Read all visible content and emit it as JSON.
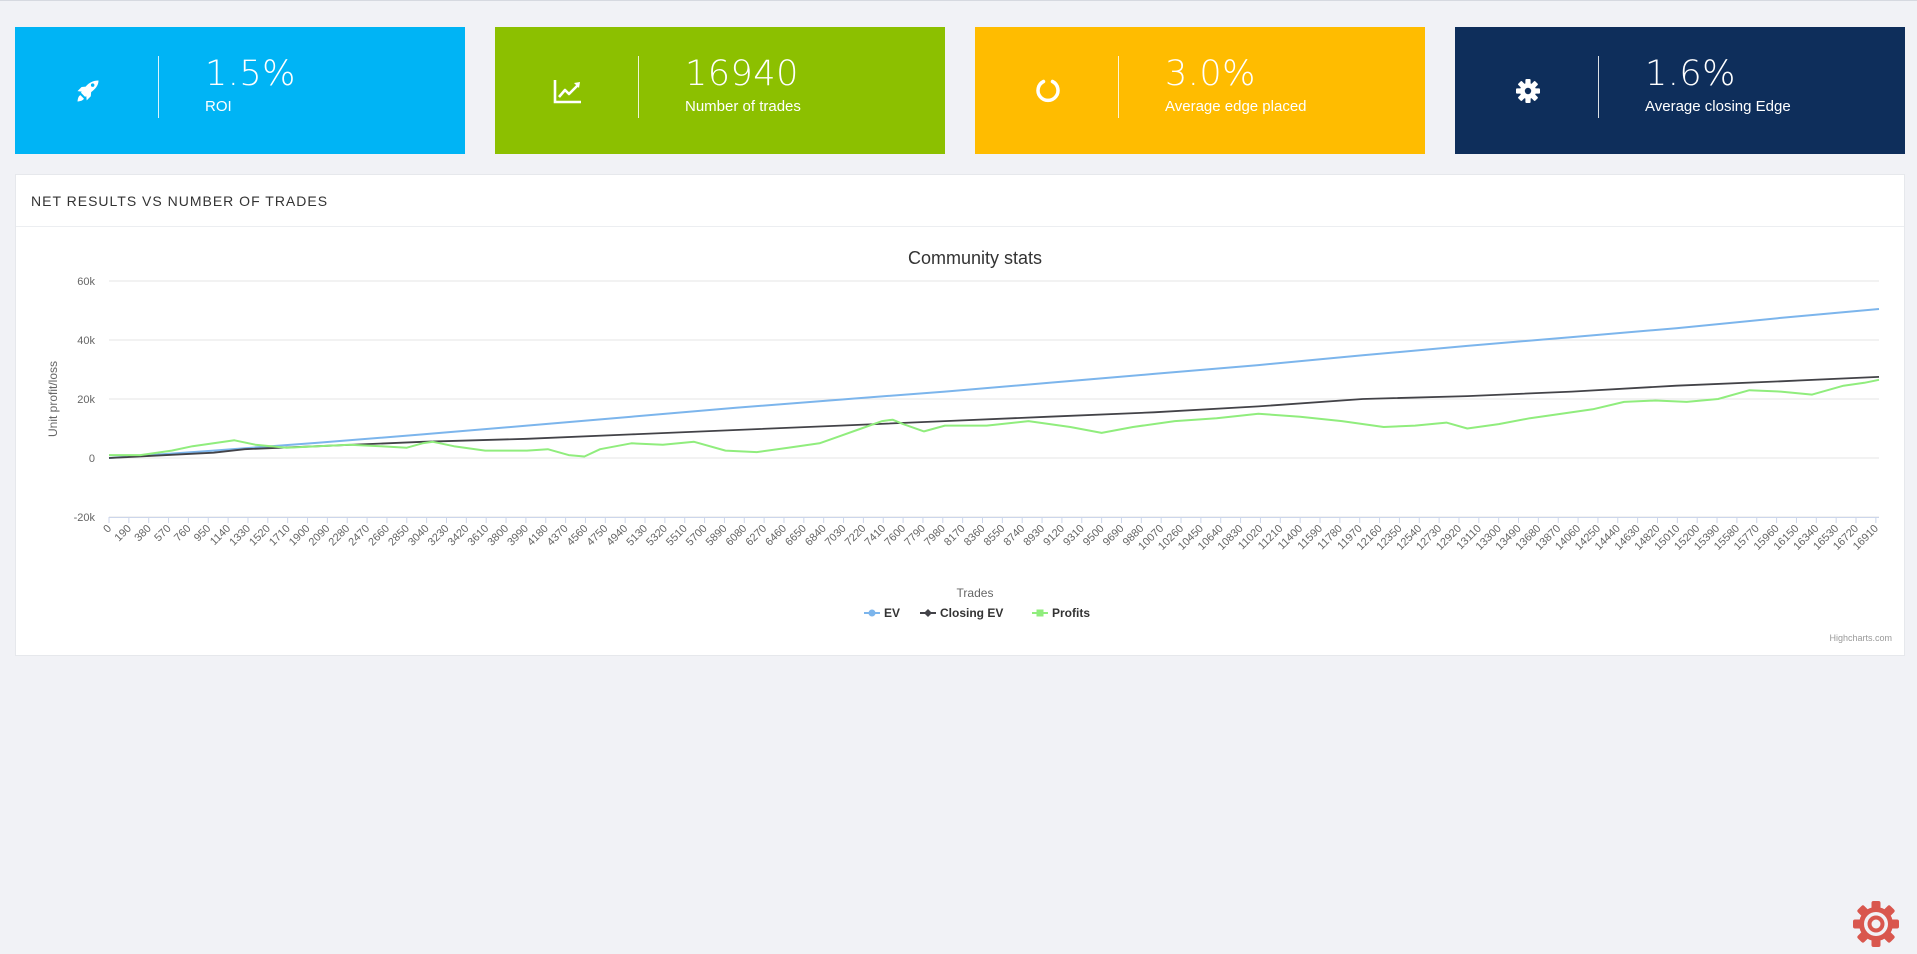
{
  "stats": [
    {
      "value": "1.5%",
      "label": "ROI",
      "icon": "rocket-icon",
      "color": "#00b4f5"
    },
    {
      "value": "16940",
      "label": "Number of trades",
      "icon": "chart-line-icon",
      "color": "#8cc000"
    },
    {
      "value": "3.0%",
      "label": "Average edge placed",
      "icon": "circle-notch-icon",
      "color": "#ffbc00"
    },
    {
      "value": "1.6%",
      "label": "Average closing Edge",
      "icon": "gear-icon",
      "color": "#0e2e5b"
    }
  ],
  "panel": {
    "title": "NET RESULTS VS NUMBER OF TRADES"
  },
  "chart_data": {
    "type": "line",
    "title": "Community stats",
    "xlabel": "Trades",
    "ylabel": "Unit profit/loss",
    "xlim": [
      0,
      16940
    ],
    "ylim": [
      -20000,
      60000
    ],
    "y_ticks": [
      -20000,
      0,
      20000,
      40000,
      60000
    ],
    "y_tick_labels": [
      "-20k",
      "0",
      "20k",
      "40k",
      "60k"
    ],
    "x_tick_step": 190,
    "grid": true,
    "legend_position": "bottom-center",
    "credit": "Highcharts.com",
    "series": [
      {
        "name": "EV",
        "color": "#7cb5ec",
        "marker": "circle",
        "points": [
          [
            0,
            0
          ],
          [
            1000,
            2500
          ],
          [
            2000,
            5200
          ],
          [
            3000,
            8000
          ],
          [
            4000,
            11000
          ],
          [
            5000,
            14000
          ],
          [
            6000,
            17000
          ],
          [
            7000,
            19800
          ],
          [
            8000,
            22500
          ],
          [
            9000,
            25500
          ],
          [
            10000,
            28500
          ],
          [
            11000,
            31500
          ],
          [
            12000,
            34800
          ],
          [
            13000,
            38000
          ],
          [
            14000,
            41000
          ],
          [
            15000,
            44000
          ],
          [
            16000,
            47500
          ],
          [
            16940,
            50500
          ]
        ]
      },
      {
        "name": "Closing EV",
        "color": "#434348",
        "marker": "diamond",
        "points": [
          [
            0,
            0
          ],
          [
            1000,
            1800
          ],
          [
            1300,
            3000
          ],
          [
            2000,
            4000
          ],
          [
            3000,
            5500
          ],
          [
            4000,
            6500
          ],
          [
            5000,
            8000
          ],
          [
            6000,
            9500
          ],
          [
            7000,
            11000
          ],
          [
            8000,
            12500
          ],
          [
            9000,
            14000
          ],
          [
            10000,
            15500
          ],
          [
            11000,
            17500
          ],
          [
            12000,
            20000
          ],
          [
            13000,
            21000
          ],
          [
            14000,
            22500
          ],
          [
            15000,
            24500
          ],
          [
            16000,
            26000
          ],
          [
            16940,
            27500
          ]
        ]
      },
      {
        "name": "Profits",
        "color": "#90ed7d",
        "marker": "square",
        "points": [
          [
            0,
            1000
          ],
          [
            300,
            1000
          ],
          [
            600,
            2500
          ],
          [
            800,
            4000
          ],
          [
            1000,
            5000
          ],
          [
            1200,
            6000
          ],
          [
            1400,
            4500
          ],
          [
            1700,
            3500
          ],
          [
            2000,
            4000
          ],
          [
            2300,
            4500
          ],
          [
            2600,
            4000
          ],
          [
            2850,
            3500
          ],
          [
            3000,
            5000
          ],
          [
            3100,
            5500
          ],
          [
            3300,
            4000
          ],
          [
            3600,
            2500
          ],
          [
            4000,
            2500
          ],
          [
            4200,
            3000
          ],
          [
            4400,
            1000
          ],
          [
            4550,
            500
          ],
          [
            4700,
            3000
          ],
          [
            5000,
            5000
          ],
          [
            5300,
            4500
          ],
          [
            5600,
            5500
          ],
          [
            5900,
            2500
          ],
          [
            6200,
            2000
          ],
          [
            6500,
            3500
          ],
          [
            6800,
            5000
          ],
          [
            7000,
            7500
          ],
          [
            7200,
            10000
          ],
          [
            7400,
            12500
          ],
          [
            7500,
            13000
          ],
          [
            7600,
            11500
          ],
          [
            7800,
            9000
          ],
          [
            8000,
            11000
          ],
          [
            8400,
            11000
          ],
          [
            8800,
            12500
          ],
          [
            9200,
            10500
          ],
          [
            9500,
            8500
          ],
          [
            9800,
            10500
          ],
          [
            10200,
            12500
          ],
          [
            10600,
            13500
          ],
          [
            11000,
            15000
          ],
          [
            11400,
            14000
          ],
          [
            11800,
            12500
          ],
          [
            12200,
            10500
          ],
          [
            12500,
            11000
          ],
          [
            12800,
            12000
          ],
          [
            13000,
            10000
          ],
          [
            13300,
            11500
          ],
          [
            13600,
            13500
          ],
          [
            13900,
            15000
          ],
          [
            14200,
            16500
          ],
          [
            14500,
            19000
          ],
          [
            14800,
            19500
          ],
          [
            15100,
            19000
          ],
          [
            15400,
            20000
          ],
          [
            15700,
            23000
          ],
          [
            16000,
            22500
          ],
          [
            16300,
            21500
          ],
          [
            16600,
            24500
          ],
          [
            16800,
            25500
          ],
          [
            16940,
            26500
          ]
        ]
      }
    ]
  }
}
